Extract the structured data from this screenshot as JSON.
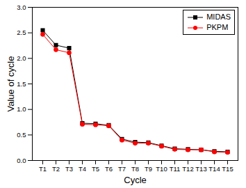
{
  "chart_data": {
    "type": "line",
    "x_label": "Cycle",
    "y_label": "Value of cycle",
    "categories": [
      "T1",
      "T2",
      "T3",
      "T4",
      "T5",
      "T6",
      "T7",
      "T8",
      "T9",
      "T10",
      "T11",
      "T12",
      "T13",
      "T14",
      "T15"
    ],
    "series": [
      {
        "name": "MIDAS",
        "color": "#000000",
        "marker": "square",
        "line_style": "solid",
        "values": [
          2.55,
          2.26,
          2.2,
          0.73,
          0.72,
          0.69,
          0.42,
          0.36,
          0.35,
          0.29,
          0.23,
          0.22,
          0.21,
          0.18,
          0.17
        ]
      },
      {
        "name": "PKPM",
        "color": "#ff0000",
        "marker": "circle",
        "line_style": "solid",
        "values": [
          2.47,
          2.17,
          2.11,
          0.71,
          0.7,
          0.68,
          0.4,
          0.34,
          0.34,
          0.28,
          0.22,
          0.21,
          0.21,
          0.17,
          0.16
        ]
      }
    ],
    "ylim": [
      0,
      3
    ],
    "yticks": [
      {
        "value": 0,
        "label": "0.0"
      },
      0.5,
      {
        "value": 1,
        "label": "1.0"
      },
      1.5,
      {
        "value": 2,
        "label": "2.0"
      },
      2.5,
      {
        "value": 3,
        "label": "3.0"
      }
    ],
    "grid": false,
    "legend": "upper right"
  }
}
